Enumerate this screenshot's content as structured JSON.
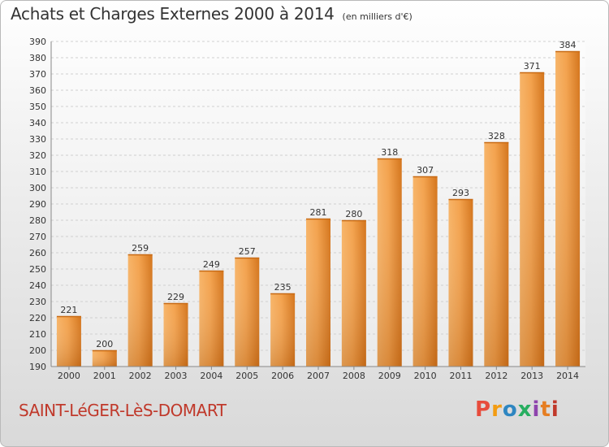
{
  "chart_data": {
    "type": "bar",
    "title": "Achats et Charges Externes 2000 à 2014",
    "subtitle": "(en milliers d'€)",
    "categories": [
      "2000",
      "2001",
      "2002",
      "2003",
      "2004",
      "2005",
      "2006",
      "2007",
      "2008",
      "2009",
      "2010",
      "2011",
      "2012",
      "2013",
      "2014"
    ],
    "values": [
      221,
      200,
      259,
      229,
      249,
      257,
      235,
      281,
      280,
      318,
      307,
      293,
      328,
      371,
      384
    ],
    "ylim": [
      190,
      390
    ],
    "yticks": [
      190,
      200,
      210,
      220,
      230,
      240,
      250,
      260,
      270,
      280,
      290,
      300,
      310,
      320,
      330,
      340,
      350,
      360,
      370,
      380,
      390
    ],
    "grid": true,
    "bar_color": "#f0902e",
    "xlabel": "",
    "ylabel": ""
  },
  "footer": {
    "town": "SAINT-LéGER-LèS-DOMART",
    "logo_letters": [
      "P",
      "r",
      "o",
      "x",
      "i",
      "t",
      "i"
    ],
    "logo_colors": [
      "#e74c3c",
      "#f39c12",
      "#2e86c1",
      "#27ae60",
      "#8e44ad",
      "#e67e22",
      "#c0392b"
    ]
  }
}
